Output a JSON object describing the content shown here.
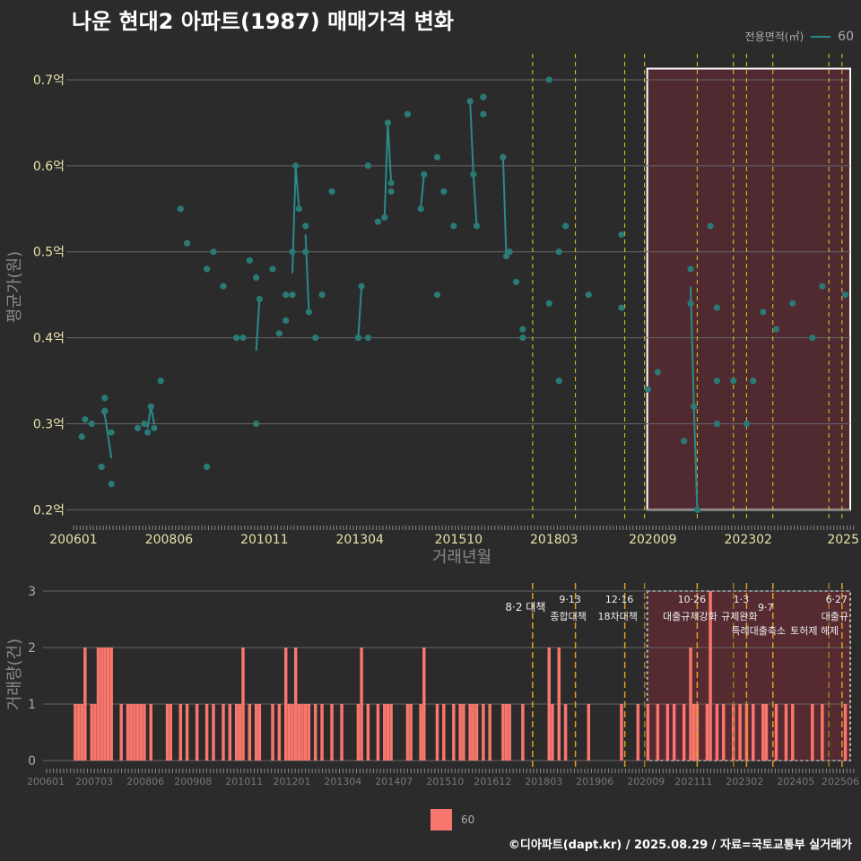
{
  "title": "나운 현대2 아파트(1987) 매매가격 변화",
  "legend_top": {
    "label": "전용면적(㎡)",
    "value": "60"
  },
  "legend_bottom": {
    "value": "60"
  },
  "footer": "©디아파트(dapt.kr) / 2025.08.29 / 자료=국토교통부 실거래가",
  "colors": {
    "background": "#2b2b2b",
    "line": "#2a8a8a",
    "point": "#2a7a76",
    "bar": "#f8766d",
    "highlight": "#5a2a32",
    "event_line": "#d8d020",
    "event_line_bottom": "#e0a020"
  },
  "chart_data": [
    {
      "type": "scatter",
      "title": "나운 현대2 아파트(1987) 매매가격 변화",
      "xlabel": "거래년월",
      "ylabel": "평균가(원)",
      "x_ticks": [
        "200601",
        "200806",
        "201011",
        "201304",
        "201510",
        "201803",
        "202009",
        "202302",
        "2025"
      ],
      "y_ticks": [
        "0.2억",
        "0.3억",
        "0.4억",
        "0.5억",
        "0.6억",
        "0.7억"
      ],
      "ylim": [
        0.2,
        0.7
      ],
      "series": [
        {
          "name": "60",
          "points": [
            [
              "2006-03",
              0.285
            ],
            [
              "2006-04",
              0.305
            ],
            [
              "2006-06",
              0.3
            ],
            [
              "2006-09",
              0.25
            ],
            [
              "2006-10",
              0.33
            ],
            [
              "2006-10",
              0.315
            ],
            [
              "2006-12",
              0.29
            ],
            [
              "2006-12",
              0.23
            ],
            [
              "2007-08",
              0.295
            ],
            [
              "2007-10",
              0.3
            ],
            [
              "2007-11",
              0.29
            ],
            [
              "2007-12",
              0.32
            ],
            [
              "2008-01",
              0.295
            ],
            [
              "2008-03",
              0.35
            ],
            [
              "2008-09",
              0.55
            ],
            [
              "2008-11",
              0.51
            ],
            [
              "2009-05",
              0.25
            ],
            [
              "2009-05",
              0.48
            ],
            [
              "2009-07",
              0.5
            ],
            [
              "2009-10",
              0.46
            ],
            [
              "2010-02",
              0.4
            ],
            [
              "2010-04",
              0.4
            ],
            [
              "2010-06",
              0.49
            ],
            [
              "2010-08",
              0.3
            ],
            [
              "2010-08",
              0.47
            ],
            [
              "2010-09",
              0.445
            ],
            [
              "2011-01",
              0.48
            ],
            [
              "2011-03",
              0.405
            ],
            [
              "2011-05",
              0.42
            ],
            [
              "2011-05",
              0.45
            ],
            [
              "2011-07",
              0.45
            ],
            [
              "2011-07",
              0.5
            ],
            [
              "2011-08",
              0.6
            ],
            [
              "2011-09",
              0.55
            ],
            [
              "2011-11",
              0.53
            ],
            [
              "2011-11",
              0.5
            ],
            [
              "2011-12",
              0.43
            ],
            [
              "2012-02",
              0.4
            ],
            [
              "2012-04",
              0.45
            ],
            [
              "2012-07",
              0.57
            ],
            [
              "2013-03",
              0.4
            ],
            [
              "2013-04",
              0.46
            ],
            [
              "2013-06",
              0.4
            ],
            [
              "2013-06",
              0.6
            ],
            [
              "2013-09",
              0.535
            ],
            [
              "2013-11",
              0.54
            ],
            [
              "2013-12",
              0.65
            ],
            [
              "2014-01",
              0.58
            ],
            [
              "2014-01",
              0.57
            ],
            [
              "2014-06",
              0.66
            ],
            [
              "2014-10",
              0.55
            ],
            [
              "2014-11",
              0.59
            ],
            [
              "2015-03",
              0.45
            ],
            [
              "2015-03",
              0.61
            ],
            [
              "2015-05",
              0.57
            ],
            [
              "2015-08",
              0.53
            ],
            [
              "2016-01",
              0.675
            ],
            [
              "2016-02",
              0.59
            ],
            [
              "2016-03",
              0.53
            ],
            [
              "2016-05",
              0.66
            ],
            [
              "2016-05",
              0.68
            ],
            [
              "2016-11",
              0.61
            ],
            [
              "2016-12",
              0.495
            ],
            [
              "2017-01",
              0.5
            ],
            [
              "2017-03",
              0.465
            ],
            [
              "2017-05",
              0.41
            ],
            [
              "2017-05",
              0.4
            ],
            [
              "2018-01",
              0.7
            ],
            [
              "2018-01",
              0.44
            ],
            [
              "2018-04",
              0.35
            ],
            [
              "2018-04",
              0.5
            ],
            [
              "2018-06",
              0.53
            ],
            [
              "2019-01",
              0.45
            ],
            [
              "2019-11",
              0.52
            ],
            [
              "2019-11",
              0.435
            ],
            [
              "2020-07",
              0.34
            ],
            [
              "2020-10",
              0.36
            ],
            [
              "2021-06",
              0.28
            ],
            [
              "2021-08",
              0.48
            ],
            [
              "2021-08",
              0.44
            ],
            [
              "2021-09",
              0.32
            ],
            [
              "2021-10",
              0.2
            ],
            [
              "2022-02",
              0.53
            ],
            [
              "2022-04",
              0.435
            ],
            [
              "2022-04",
              0.35
            ],
            [
              "2022-04",
              0.3
            ],
            [
              "2022-09",
              0.35
            ],
            [
              "2023-01",
              0.3
            ],
            [
              "2023-03",
              0.35
            ],
            [
              "2023-06",
              0.43
            ],
            [
              "2023-10",
              0.41
            ],
            [
              "2024-03",
              0.44
            ],
            [
              "2024-09",
              0.4
            ],
            [
              "2024-12",
              0.46
            ],
            [
              "2025-07",
              0.45
            ]
          ],
          "line_segments": [
            [
              [
                "2006-09",
                0.315
              ],
              [
                "2006-10",
                0.31
              ],
              [
                "2006-12",
                0.26
              ]
            ],
            [
              [
                "2007-11",
                0.295
              ],
              [
                "2007-12",
                0.32
              ],
              [
                "2008-01",
                0.3
              ]
            ],
            [
              [
                "2010-08",
                0.385
              ],
              [
                "2010-09",
                0.445
              ]
            ],
            [
              [
                "2011-07",
                0.475
              ],
              [
                "2011-08",
                0.6
              ],
              [
                "2011-09",
                0.55
              ]
            ],
            [
              [
                "2011-11",
                0.52
              ],
              [
                "2011-12",
                0.43
              ]
            ],
            [
              [
                "2013-03",
                0.4
              ],
              [
                "2013-04",
                0.46
              ]
            ],
            [
              [
                "2013-11",
                0.54
              ],
              [
                "2013-12",
                0.65
              ],
              [
                "2014-01",
                0.58
              ]
            ],
            [
              [
                "2014-10",
                0.55
              ],
              [
                "2014-11",
                0.59
              ]
            ],
            [
              [
                "2016-01",
                0.675
              ],
              [
                "2016-02",
                0.59
              ],
              [
                "2016-03",
                0.53
              ]
            ],
            [
              [
                "2016-11",
                0.61
              ],
              [
                "2016-12",
                0.495
              ],
              [
                "2017-01",
                0.5
              ]
            ],
            [
              [
                "2021-08",
                0.46
              ],
              [
                "2021-09",
                0.32
              ],
              [
                "2021-10",
                0.2
              ]
            ]
          ]
        }
      ],
      "highlight_range": [
        "2020-09",
        "2025-08"
      ]
    },
    {
      "type": "bar",
      "ylabel": "거래량(건)",
      "x_ticks": [
        "200601",
        "200703",
        "200806",
        "200908",
        "201011",
        "201201",
        "201304",
        "201407",
        "201510",
        "201612",
        "201803",
        "201906",
        "202009",
        "202111",
        "202302",
        "202405",
        "202506"
      ],
      "y_ticks": [
        "0",
        "1",
        "2",
        "3"
      ],
      "ylim": [
        0,
        3
      ],
      "series": [
        {
          "name": "60",
          "bars": [
            [
              "2006-01",
              1
            ],
            [
              "2006-02",
              1
            ],
            [
              "2006-03",
              1
            ],
            [
              "2006-04",
              2
            ],
            [
              "2006-06",
              1
            ],
            [
              "2006-07",
              1
            ],
            [
              "2006-08",
              2
            ],
            [
              "2006-09",
              2
            ],
            [
              "2006-10",
              2
            ],
            [
              "2006-11",
              2
            ],
            [
              "2006-12",
              2
            ],
            [
              "2007-03",
              1
            ],
            [
              "2007-05",
              1
            ],
            [
              "2007-06",
              1
            ],
            [
              "2007-07",
              1
            ],
            [
              "2007-08",
              1
            ],
            [
              "2007-09",
              1
            ],
            [
              "2007-10",
              1
            ],
            [
              "2007-12",
              1
            ],
            [
              "2008-05",
              1
            ],
            [
              "2008-06",
              1
            ],
            [
              "2008-09",
              1
            ],
            [
              "2008-11",
              1
            ],
            [
              "2009-02",
              1
            ],
            [
              "2009-05",
              1
            ],
            [
              "2009-07",
              1
            ],
            [
              "2009-10",
              1
            ],
            [
              "2009-12",
              1
            ],
            [
              "2010-02",
              1
            ],
            [
              "2010-03",
              1
            ],
            [
              "2010-04",
              2
            ],
            [
              "2010-06",
              1
            ],
            [
              "2010-08",
              1
            ],
            [
              "2010-09",
              1
            ],
            [
              "2011-01",
              1
            ],
            [
              "2011-03",
              1
            ],
            [
              "2011-05",
              2
            ],
            [
              "2011-06",
              1
            ],
            [
              "2011-07",
              1
            ],
            [
              "2011-08",
              2
            ],
            [
              "2011-09",
              1
            ],
            [
              "2011-10",
              1
            ],
            [
              "2011-11",
              1
            ],
            [
              "2011-12",
              1
            ],
            [
              "2012-02",
              1
            ],
            [
              "2012-04",
              1
            ],
            [
              "2012-07",
              1
            ],
            [
              "2012-10",
              1
            ],
            [
              "2013-03",
              1
            ],
            [
              "2013-04",
              2
            ],
            [
              "2013-06",
              1
            ],
            [
              "2013-09",
              1
            ],
            [
              "2013-11",
              1
            ],
            [
              "2013-12",
              1
            ],
            [
              "2014-01",
              1
            ],
            [
              "2014-06",
              1
            ],
            [
              "2014-07",
              1
            ],
            [
              "2014-10",
              1
            ],
            [
              "2014-11",
              2
            ],
            [
              "2015-03",
              1
            ],
            [
              "2015-05",
              1
            ],
            [
              "2015-08",
              1
            ],
            [
              "2015-10",
              1
            ],
            [
              "2015-11",
              1
            ],
            [
              "2016-01",
              1
            ],
            [
              "2016-02",
              1
            ],
            [
              "2016-03",
              1
            ],
            [
              "2016-05",
              1
            ],
            [
              "2016-07",
              1
            ],
            [
              "2016-11",
              1
            ],
            [
              "2016-12",
              1
            ],
            [
              "2017-01",
              1
            ],
            [
              "2017-05",
              1
            ],
            [
              "2018-01",
              2
            ],
            [
              "2018-02",
              1
            ],
            [
              "2018-04",
              2
            ],
            [
              "2018-06",
              1
            ],
            [
              "2019-01",
              1
            ],
            [
              "2019-11",
              1
            ],
            [
              "2020-04",
              1
            ],
            [
              "2020-07",
              1
            ],
            [
              "2020-10",
              1
            ],
            [
              "2021-01",
              1
            ],
            [
              "2021-03",
              1
            ],
            [
              "2021-06",
              1
            ],
            [
              "2021-08",
              2
            ],
            [
              "2021-09",
              1
            ],
            [
              "2021-10",
              1
            ],
            [
              "2022-01",
              1
            ],
            [
              "2022-02",
              3
            ],
            [
              "2022-04",
              1
            ],
            [
              "2022-06",
              1
            ],
            [
              "2022-09",
              1
            ],
            [
              "2022-11",
              1
            ],
            [
              "2023-01",
              1
            ],
            [
              "2023-03",
              1
            ],
            [
              "2023-06",
              1
            ],
            [
              "2023-07",
              1
            ],
            [
              "2023-10",
              1
            ],
            [
              "2024-01",
              1
            ],
            [
              "2024-03",
              1
            ],
            [
              "2024-09",
              1
            ],
            [
              "2024-12",
              1
            ],
            [
              "2025-07",
              1
            ]
          ]
        }
      ],
      "highlight_range": [
        "2020-09",
        "2025-08"
      ]
    }
  ],
  "events": [
    {
      "date": "2017-08",
      "label_date": "",
      "label": "8·2 대책",
      "label2": ""
    },
    {
      "date": "2018-09",
      "label_date": "9·13",
      "label": "종합대책",
      "label2": ""
    },
    {
      "date": "2019-12",
      "label_date": "12·16",
      "label": "18차대책",
      "label2": ""
    },
    {
      "date": "2020-06",
      "label_date": "",
      "label": "",
      "label2": ""
    },
    {
      "date": "2021-10",
      "label_date": "10·26",
      "label": "대출규제강화",
      "label2": ""
    },
    {
      "date": "2022-09",
      "label_date": "",
      "label": "",
      "label2": ""
    },
    {
      "date": "2023-01",
      "label_date": "1·3",
      "label": "규제완화",
      "label2": ""
    },
    {
      "date": "2023-09",
      "label_date": "",
      "label": "9·7",
      "label2": "특례대출축소"
    },
    {
      "date": "2025-02",
      "label_date": "",
      "label": "",
      "label2": "토허제 해제"
    },
    {
      "date": "2025-06",
      "label_date": "6·27",
      "label": "대출규",
      "label2": ""
    }
  ]
}
